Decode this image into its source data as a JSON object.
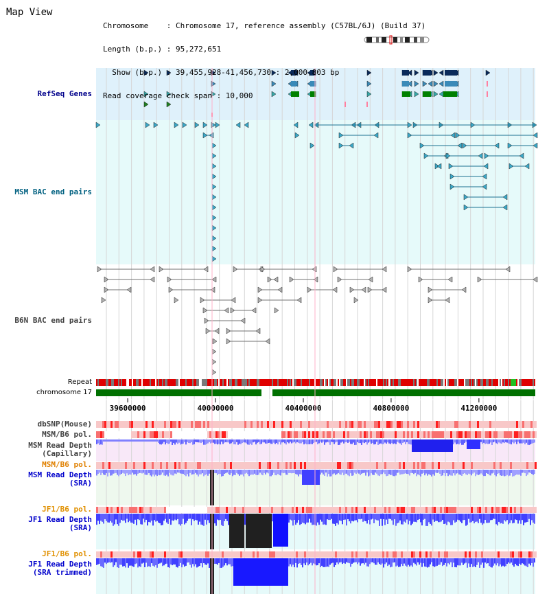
{
  "view": {
    "title": "Map View"
  },
  "info": {
    "line1": "Chromosome    : Chromosome 17, reference assembly (C57BL/6J) (Build 37)",
    "line2": "Length (b.p.) : 95,272,651",
    "line3": "  Show (b.p.) : 39,455,928-41,456,730 : 2,000,803 bp",
    "line4": "Read coverage check span : 10,000"
  },
  "tracks": {
    "refseq": {
      "label": "RefSeq Genes",
      "color": "#00008b",
      "bg": "#dff1fb"
    },
    "msm_bac": {
      "label": "MSM BAC end pairs",
      "color": "#006080",
      "bg": "#e6fafa"
    },
    "b6n_bac": {
      "label": "B6N BAC end pairs",
      "color": "#404040",
      "bg": "#ffffff"
    },
    "repeat": {
      "label": "Repeat"
    },
    "chromosome": {
      "label": "chromosome 17"
    },
    "dbsnp": {
      "label": "dbSNP(Mouse)"
    },
    "msm_b6_pol_1": {
      "label": "MSM/B6 pol."
    },
    "msm_depth_cap": {
      "line1": "MSM Read Depth",
      "line2": "(Capillary)"
    },
    "msm_b6_pol_2": {
      "label": "MSM/B6 pol.",
      "color": "#e08000"
    },
    "msm_depth_sra": {
      "line1": "MSM Read Depth",
      "line2": "(SRA)",
      "color": "#0000cc"
    },
    "jf1_b6_pol_1": {
      "label": "JF1/B6 pol.",
      "color": "#e09000"
    },
    "jf1_depth_sra": {
      "line1": "JF1 Read Depth",
      "line2": "(SRA)",
      "color": "#0000cc"
    },
    "jf1_b6_pol_2": {
      "label": "JF1/B6 pol.",
      "color": "#e09000"
    },
    "jf1_depth_trim": {
      "line1": "JF1 Read Depth",
      "line2": "(SRA trimmed)",
      "color": "#0000cc"
    }
  },
  "axis": {
    "start": 39455928,
    "end": 41456730,
    "ticks": [
      {
        "value": 39600000,
        "label": "39600000"
      },
      {
        "value": 40000000,
        "label": "40000000"
      },
      {
        "value": 40400000,
        "label": "40400000"
      },
      {
        "value": 40800000,
        "label": "40800000"
      },
      {
        "value": 41200000,
        "label": "41200000"
      }
    ]
  },
  "colors": {
    "grid": "#c8c8c8",
    "repeat_red": "#e00000",
    "repeat_gray": "#808080",
    "chrom_green": "#007000",
    "depth_blue": "#4040ff",
    "depth_light": "#8888ff",
    "pol_pink": "#f8c8c8",
    "pol_red": "#ff2020",
    "black": "#202020"
  }
}
